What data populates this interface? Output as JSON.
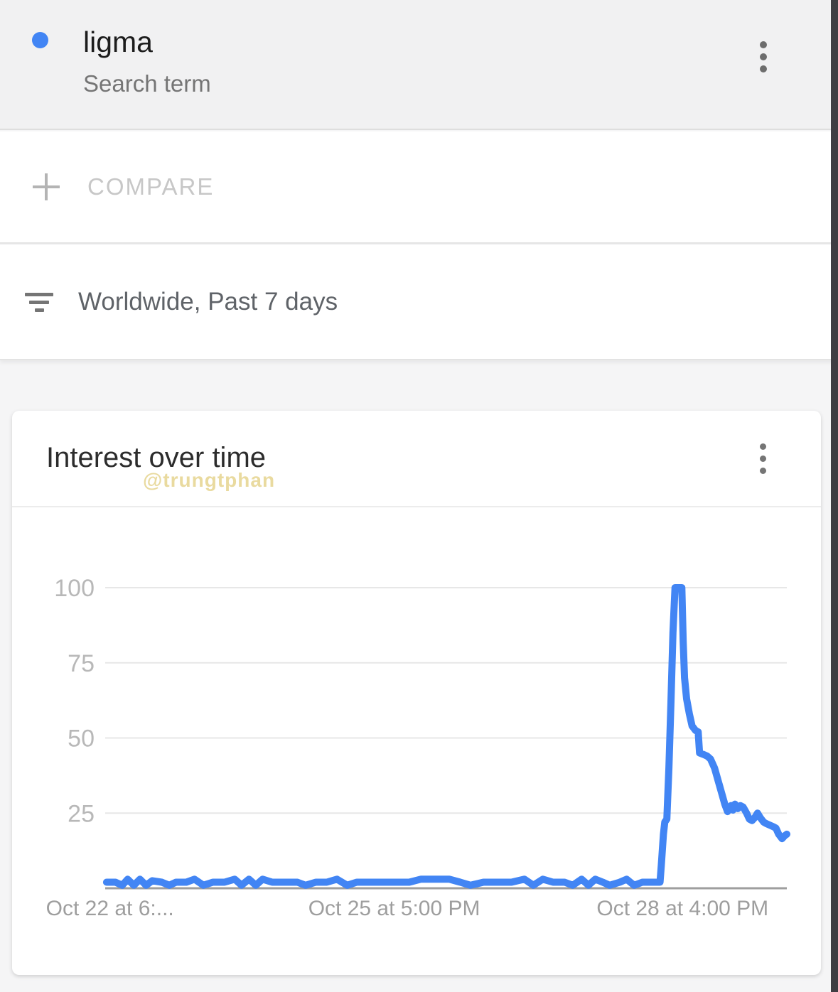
{
  "header": {
    "term": "ligma",
    "term_type": "Search term",
    "menu_icon": "kebab-menu-icon"
  },
  "compare": {
    "label": "COMPARE",
    "icon": "plus-icon"
  },
  "filters": {
    "label": "Worldwide, Past 7 days",
    "icon": "filter-icon"
  },
  "card": {
    "title": "Interest over time",
    "watermark": "@trungtphan",
    "menu_icon": "kebab-menu-icon"
  },
  "colors": {
    "accent_blue": "#4285f4",
    "line_blue": "#4285f4",
    "gridline": "#e7e7e7",
    "axis_line": "#9e9e9e",
    "y_axis_label": "#b8b8b8",
    "x_axis_label": "#9e9e9e",
    "watermark": "#e7d795"
  },
  "chart_data": {
    "type": "line",
    "title": "Interest over time",
    "xlabel": "",
    "ylabel": "",
    "ylim": [
      0,
      100
    ],
    "y_ticks": [
      100,
      75,
      50,
      25
    ],
    "grid": true,
    "legend": "none",
    "x_tick_labels": [
      {
        "label": "Oct 22 at 6:...",
        "fx": 0.007,
        "anchor": "middle"
      },
      {
        "label": "Oct 25 at 5:00 PM",
        "fx": 0.424,
        "anchor": "middle"
      },
      {
        "label": "Oct 28 at 4:00 PM",
        "fx": 0.847,
        "anchor": "middle"
      }
    ],
    "series": [
      {
        "name": "ligma",
        "color": "#4285f4",
        "points": [
          [
            0.002,
            2
          ],
          [
            0.015,
            2
          ],
          [
            0.025,
            1
          ],
          [
            0.033,
            3
          ],
          [
            0.042,
            1
          ],
          [
            0.051,
            3
          ],
          [
            0.06,
            1
          ],
          [
            0.069,
            2.5
          ],
          [
            0.083,
            2
          ],
          [
            0.094,
            1
          ],
          [
            0.104,
            2
          ],
          [
            0.119,
            2
          ],
          [
            0.131,
            3
          ],
          [
            0.144,
            1
          ],
          [
            0.158,
            2
          ],
          [
            0.175,
            2
          ],
          [
            0.19,
            3
          ],
          [
            0.2,
            1
          ],
          [
            0.211,
            3
          ],
          [
            0.221,
            1
          ],
          [
            0.231,
            3
          ],
          [
            0.245,
            2
          ],
          [
            0.263,
            2
          ],
          [
            0.282,
            2
          ],
          [
            0.294,
            1
          ],
          [
            0.309,
            2
          ],
          [
            0.325,
            2
          ],
          [
            0.34,
            3
          ],
          [
            0.355,
            1
          ],
          [
            0.369,
            2
          ],
          [
            0.388,
            2
          ],
          [
            0.409,
            2
          ],
          [
            0.428,
            2
          ],
          [
            0.446,
            2
          ],
          [
            0.463,
            3
          ],
          [
            0.484,
            3
          ],
          [
            0.505,
            3
          ],
          [
            0.521,
            2
          ],
          [
            0.536,
            1
          ],
          [
            0.555,
            2
          ],
          [
            0.576,
            2
          ],
          [
            0.596,
            2
          ],
          [
            0.615,
            3
          ],
          [
            0.628,
            1
          ],
          [
            0.642,
            3
          ],
          [
            0.657,
            2
          ],
          [
            0.674,
            2
          ],
          [
            0.686,
            1
          ],
          [
            0.699,
            3
          ],
          [
            0.709,
            1
          ],
          [
            0.719,
            3
          ],
          [
            0.73,
            2
          ],
          [
            0.74,
            1
          ],
          [
            0.755,
            2
          ],
          [
            0.765,
            3
          ],
          [
            0.776,
            1
          ],
          [
            0.788,
            2
          ],
          [
            0.801,
            2
          ],
          [
            0.811,
            2
          ],
          [
            0.814,
            2
          ],
          [
            0.816,
            8
          ],
          [
            0.819,
            18
          ],
          [
            0.821,
            22
          ],
          [
            0.824,
            23
          ],
          [
            0.827,
            40
          ],
          [
            0.83,
            62
          ],
          [
            0.833,
            85
          ],
          [
            0.836,
            100
          ],
          [
            0.846,
            100
          ],
          [
            0.848,
            82
          ],
          [
            0.85,
            70
          ],
          [
            0.853,
            63
          ],
          [
            0.857,
            58
          ],
          [
            0.861,
            54
          ],
          [
            0.866,
            52.5
          ],
          [
            0.87,
            52
          ],
          [
            0.872,
            45
          ],
          [
            0.878,
            44.5
          ],
          [
            0.883,
            44
          ],
          [
            0.888,
            43
          ],
          [
            0.894,
            40
          ],
          [
            0.899,
            36
          ],
          [
            0.904,
            32
          ],
          [
            0.909,
            28
          ],
          [
            0.913,
            25.5
          ],
          [
            0.918,
            27.5
          ],
          [
            0.921,
            26
          ],
          [
            0.924,
            28
          ],
          [
            0.928,
            26.5
          ],
          [
            0.932,
            27.5
          ],
          [
            0.936,
            27
          ],
          [
            0.941,
            25
          ],
          [
            0.945,
            23
          ],
          [
            0.949,
            22.5
          ],
          [
            0.953,
            23.5
          ],
          [
            0.957,
            25
          ],
          [
            0.961,
            23.5
          ],
          [
            0.966,
            22
          ],
          [
            0.97,
            21.5
          ],
          [
            0.975,
            21
          ],
          [
            0.98,
            20.5
          ],
          [
            0.984,
            20
          ],
          [
            0.988,
            18
          ],
          [
            0.993,
            16.5
          ],
          [
            0.997,
            17.5
          ],
          [
            1.0,
            18
          ]
        ]
      }
    ]
  }
}
